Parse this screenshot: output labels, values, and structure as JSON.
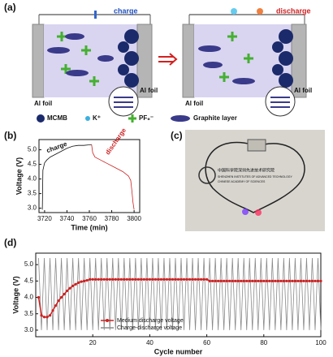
{
  "panel_labels": [
    "(a)",
    "(b)",
    "(c)",
    "(d)"
  ],
  "diagram": {
    "charge": "charge",
    "discharge": "discharge",
    "al_foil": [
      "Al foil",
      "Al foil",
      "Al foil",
      "Al foil"
    ],
    "legend": [
      "MCMB",
      "K⁺",
      "PF₆⁻",
      "Graphite layer"
    ]
  },
  "photo": {
    "institute": [
      "中国科学院深圳先进技术研究院",
      "SHENZHEN INSTITUTES OF ADVANCED TECHNOLOGY",
      "CHINESE ACADEMY OF SCIENCES"
    ]
  },
  "chart_data": [
    {
      "type": "line",
      "xlabel": "Time (min)",
      "ylabel": "Voltage (V)",
      "xlim": [
        3715,
        3805
      ],
      "xticks": [
        3720,
        3740,
        3760,
        3780,
        3800
      ],
      "ylim": [
        2.85,
        5.35
      ],
      "yticks": [
        {
          "value": 3,
          "label": "3.0"
        },
        3.5,
        {
          "value": 4,
          "label": "4.0"
        },
        4.5,
        {
          "value": 5,
          "label": "5.0"
        }
      ],
      "annotations": [
        "charge",
        "discharge"
      ],
      "series": [
        {
          "color": "#111111",
          "x": [
            3718,
            3718.5,
            3720,
            3722,
            3725,
            3730,
            3735,
            3740,
            3745,
            3750,
            3755,
            3760,
            3762
          ],
          "values": [
            2.95,
            4.3,
            4.55,
            4.65,
            4.75,
            4.85,
            4.95,
            5.05,
            5.12,
            5.15,
            5.15,
            5.17,
            5.18
          ]
        },
        {
          "color": "#cc2222",
          "x": [
            3762,
            3763,
            3765,
            3770,
            3775,
            3780,
            3785,
            3790,
            3795,
            3797,
            3798,
            3799,
            3800
          ],
          "values": [
            5.18,
            4.9,
            4.75,
            4.65,
            4.55,
            4.45,
            4.35,
            4.25,
            4.1,
            3.95,
            3.6,
            3.2,
            2.95
          ]
        }
      ]
    },
    {
      "type": "line",
      "xlabel": "Cycle number",
      "ylabel": "Voltage (V)",
      "xlim": [
        0,
        100
      ],
      "xticks": [
        20,
        40,
        60,
        80,
        100
      ],
      "ylim": [
        2.8,
        5.35
      ],
      "yticks": [
        {
          "value": 3,
          "label": "3.0"
        },
        3.5,
        {
          "value": 4,
          "label": "4.0"
        },
        4.5,
        {
          "value": 5,
          "label": "5.0"
        }
      ],
      "legend": "lower left",
      "x": [
        1,
        2,
        3,
        4,
        5,
        6,
        7,
        8,
        9,
        10,
        11,
        12,
        13,
        14,
        15,
        16,
        17,
        18,
        19,
        20,
        21,
        22,
        23,
        24,
        25,
        26,
        27,
        28,
        29,
        30,
        31,
        32,
        33,
        34,
        35,
        36,
        37,
        38,
        39,
        40,
        41,
        42,
        43,
        44,
        45,
        46,
        47,
        48,
        49,
        50,
        51,
        52,
        53,
        54,
        55,
        56,
        57,
        58,
        59,
        60,
        61,
        62,
        63,
        64,
        65,
        66,
        67,
        68,
        69,
        70,
        71,
        72,
        73,
        74,
        75,
        76,
        77,
        78,
        79,
        80,
        81,
        82,
        83,
        84,
        85,
        86,
        87,
        88,
        89,
        90,
        91,
        92,
        93,
        94,
        95,
        96,
        97,
        98,
        99,
        100
      ],
      "series": [
        {
          "name": "Charge-discharge voltage",
          "color": "#8a8a8a",
          "values": [
            5.2,
            3.0,
            5.2,
            3.0,
            5.2,
            3.0,
            5.2,
            3.0,
            5.2,
            3.0,
            5.2,
            3.0,
            5.2,
            3.0,
            5.2,
            3.0,
            5.2,
            3.0,
            5.2,
            3.0,
            5.2,
            3.0,
            5.2,
            3.0,
            5.2,
            3.0,
            5.2,
            3.0,
            5.2,
            3.0,
            5.2,
            3.0,
            5.2,
            3.0,
            5.2,
            3.0,
            5.2,
            3.0,
            5.2,
            3.0,
            5.2,
            3.0,
            5.2,
            3.0,
            5.2,
            3.0,
            5.2,
            3.0,
            5.2,
            3.0,
            5.2,
            3.0,
            5.2,
            3.0,
            5.2,
            3.0,
            5.2,
            3.0,
            5.2,
            3.0,
            5.2,
            3.0,
            5.2,
            3.0,
            5.2,
            3.0,
            5.2,
            3.0,
            5.2,
            3.0,
            5.2,
            3.0,
            5.2,
            3.0,
            5.2,
            3.0,
            5.2,
            3.0,
            5.2,
            3.0,
            5.2,
            3.0,
            5.2,
            3.0,
            5.2,
            3.0,
            5.2,
            3.0,
            5.2,
            3.0,
            5.2,
            3.0,
            5.2,
            3.0,
            5.2,
            3.0,
            5.2,
            3.0,
            5.2,
            3.0
          ]
        },
        {
          "name": "Medium discharge voltage",
          "color": "#cc2222",
          "marker": "o",
          "values": [
            4.0,
            3.45,
            3.4,
            3.4,
            3.45,
            3.6,
            3.75,
            3.9,
            4.0,
            4.1,
            4.2,
            4.28,
            4.35,
            4.4,
            4.45,
            4.48,
            4.5,
            4.52,
            4.55,
            4.55,
            4.55,
            4.55,
            4.55,
            4.55,
            4.55,
            4.55,
            4.55,
            4.55,
            4.55,
            4.55,
            4.55,
            4.55,
            4.55,
            4.55,
            4.55,
            4.55,
            4.55,
            4.55,
            4.55,
            4.55,
            4.55,
            4.55,
            4.55,
            4.55,
            4.55,
            4.55,
            4.55,
            4.55,
            4.55,
            4.55,
            4.55,
            4.55,
            4.55,
            4.55,
            4.55,
            4.55,
            4.55,
            4.55,
            4.55,
            4.55,
            4.5,
            4.5,
            4.5,
            4.5,
            4.5,
            4.5,
            4.5,
            4.5,
            4.5,
            4.5,
            4.5,
            4.5,
            4.5,
            4.5,
            4.5,
            4.5,
            4.5,
            4.5,
            4.5,
            4.5,
            4.5,
            4.5,
            4.5,
            4.5,
            4.5,
            4.5,
            4.5,
            4.5,
            4.5,
            4.5,
            4.5,
            4.5,
            4.5,
            4.5,
            4.5,
            4.5,
            4.5,
            4.5,
            4.5,
            4.5
          ]
        }
      ]
    }
  ]
}
